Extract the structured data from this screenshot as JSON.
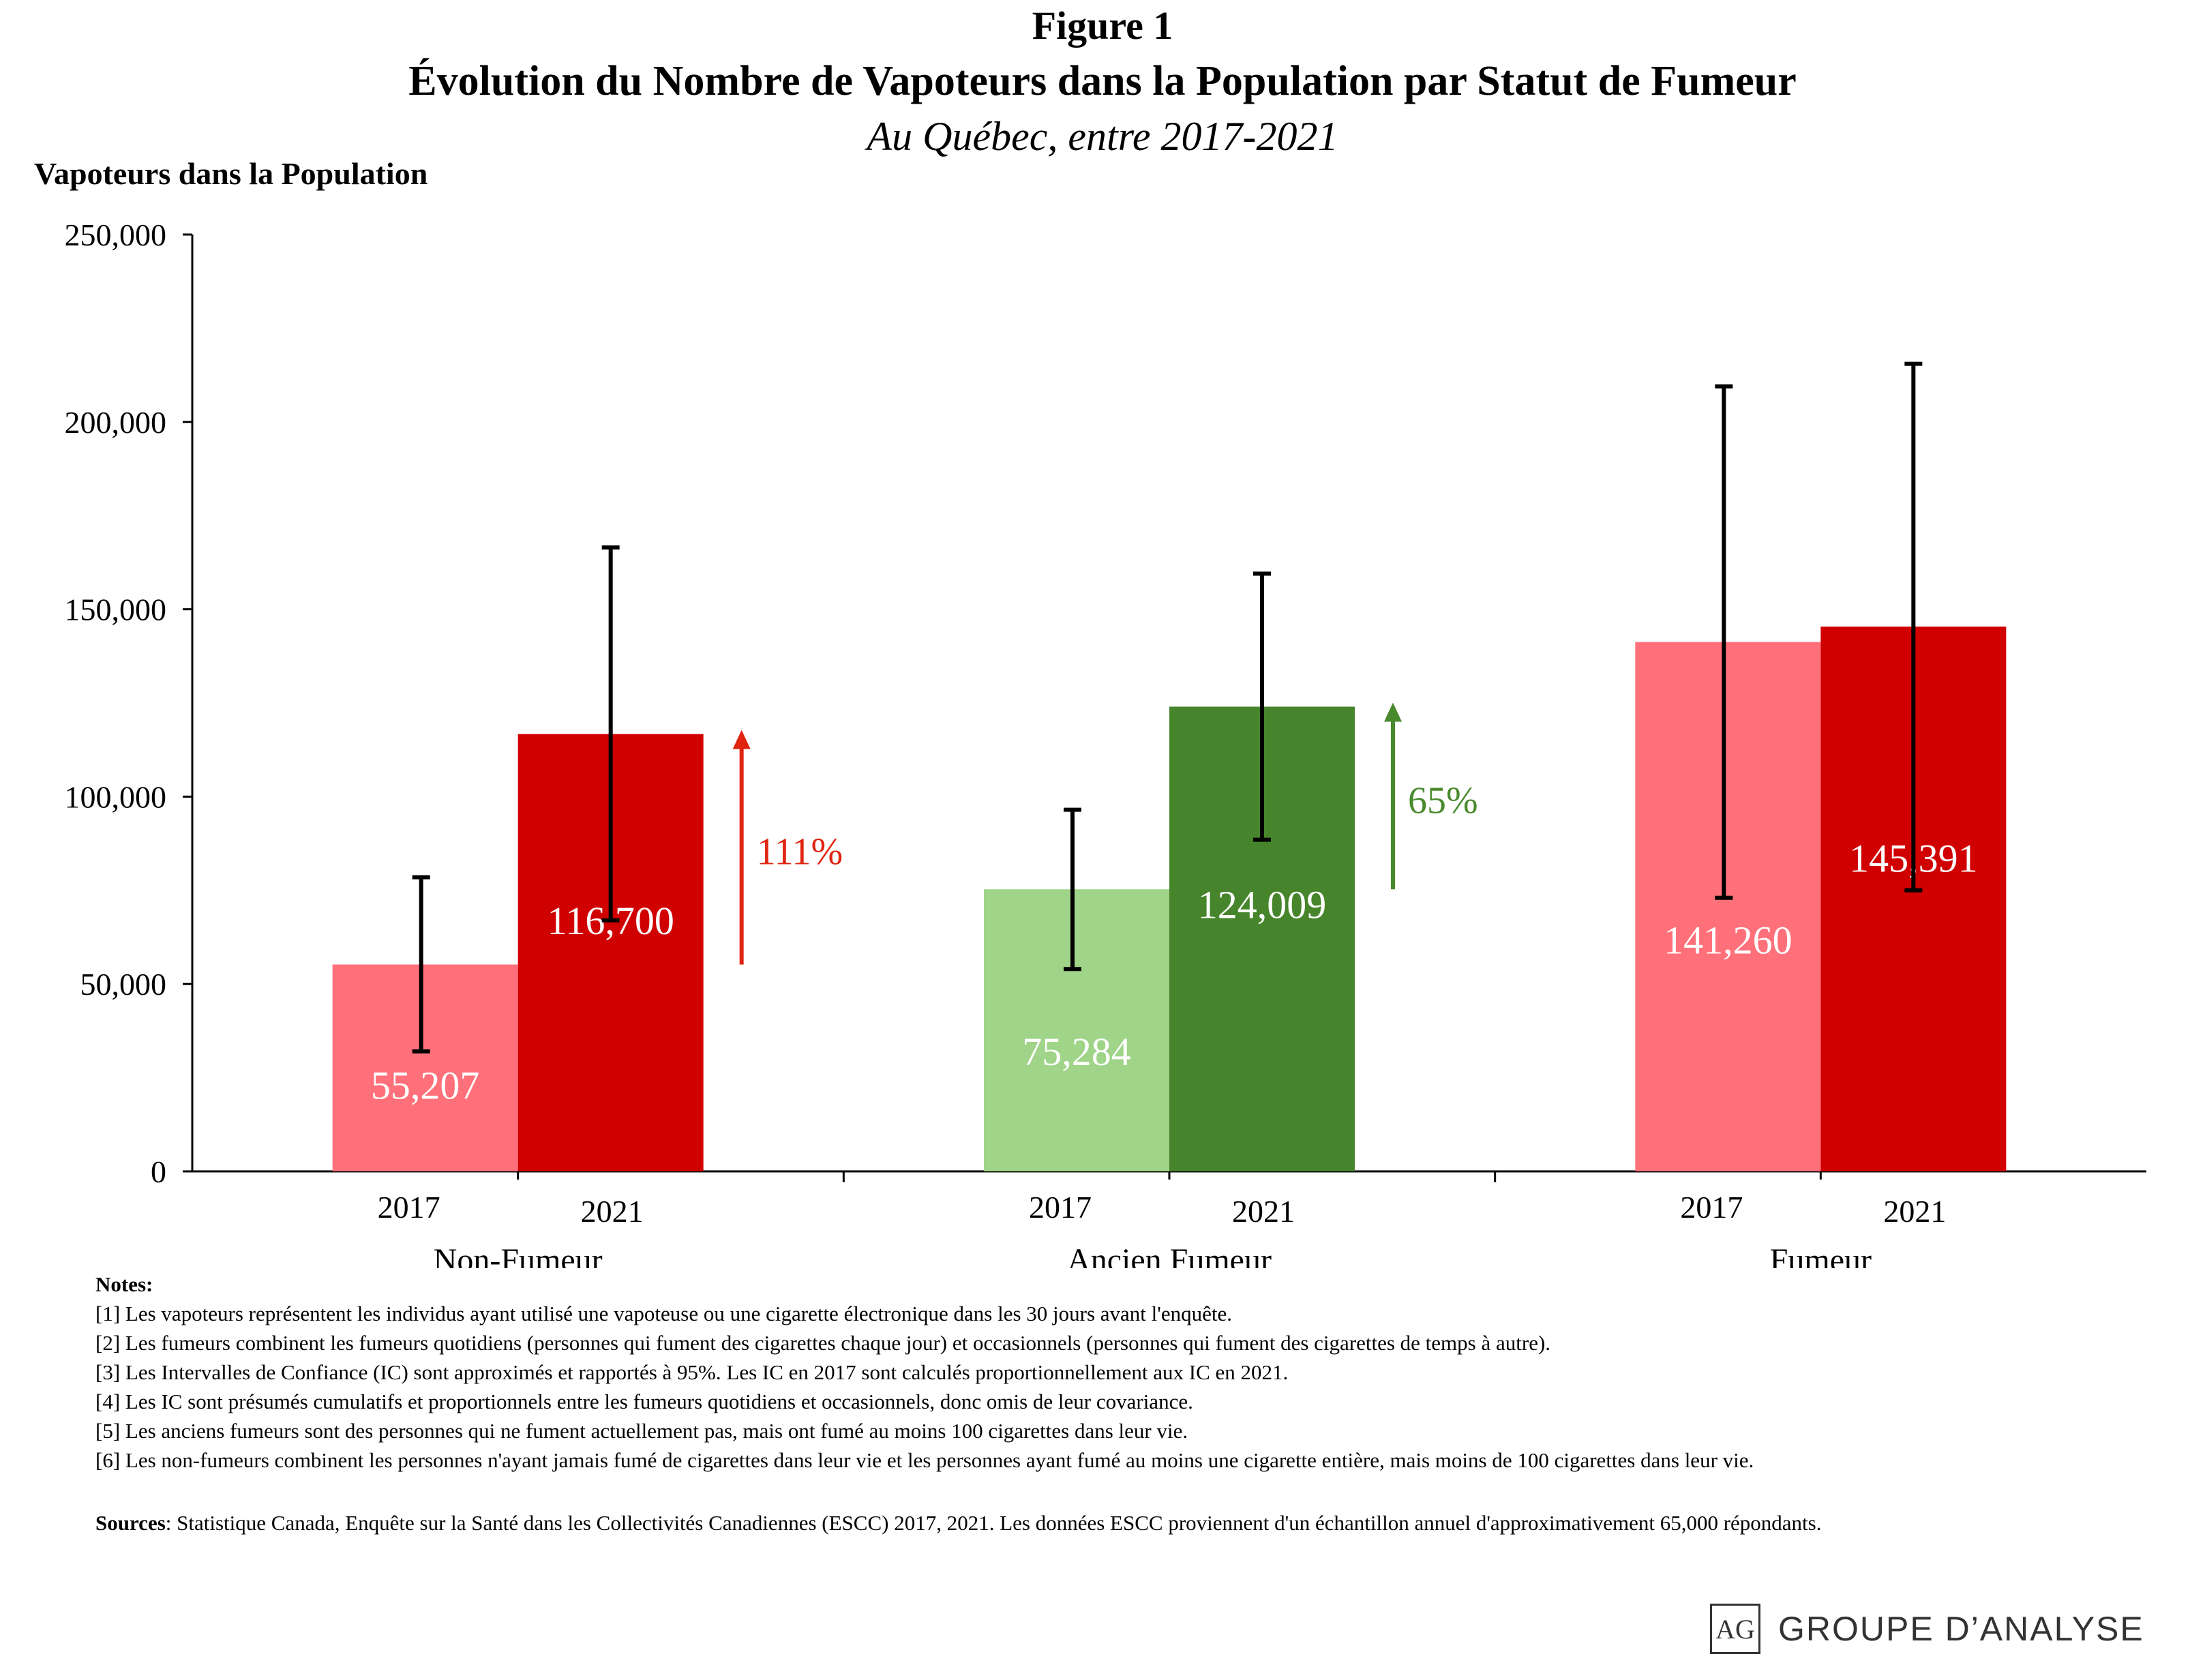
{
  "figure_label": "Figure 1",
  "chart_data": {
    "type": "bar",
    "title": "Évolution du Nombre de Vapoteurs dans la Population par Statut de Fumeur",
    "subtitle": "Au Québec, entre 2017-2021",
    "ylabel": "Vapoteurs dans la Population",
    "xlabel": "",
    "ylim": [
      0,
      250000
    ],
    "yticks": [
      0,
      50000,
      100000,
      150000,
      200000,
      250000
    ],
    "ytick_labels": [
      "0",
      "50,000",
      "100,000",
      "150,000",
      "200,000",
      "250,000"
    ],
    "grid": false,
    "legend": "none",
    "groups": [
      {
        "category": "Non-Fumeur",
        "bars": [
          {
            "year": "2017",
            "value": 55207,
            "label": "55,207",
            "ci": [
              32000,
              78500
            ],
            "color": "#ff707a"
          },
          {
            "year": "2021",
            "value": 116700,
            "label": "116,700",
            "ci": [
              67000,
              166500
            ],
            "color": "#d10000"
          }
        ],
        "change": {
          "label": "111%",
          "color": "#e0240f",
          "from": 55207,
          "to": 116700
        }
      },
      {
        "category": "Ancien Fumeur",
        "bars": [
          {
            "year": "2017",
            "value": 75284,
            "label": "75,284",
            "ci": [
              54000,
              96500
            ],
            "color": "#a0d488"
          },
          {
            "year": "2021",
            "value": 124009,
            "label": "124,009",
            "ci": [
              88500,
              159500
            ],
            "color": "#46852b"
          }
        ],
        "change": {
          "label": "65%",
          "color": "#4a8a2e",
          "from": 75284,
          "to": 124009
        }
      },
      {
        "category": "Fumeur",
        "bars": [
          {
            "year": "2017",
            "value": 141260,
            "label": "141,260",
            "ci": [
              73000,
              209500
            ],
            "color": "#ff707a"
          },
          {
            "year": "2021",
            "value": 145391,
            "label": "145,391",
            "ci": [
              75000,
              215500
            ],
            "color": "#d10000"
          }
        ]
      }
    ]
  },
  "notes": {
    "heading": "Notes",
    "items": [
      "[1] Les vapoteurs représentent les individus ayant utilisé une vapoteuse ou une cigarette électronique dans les 30 jours avant l'enquête.",
      "[2] Les fumeurs combinent les fumeurs quotidiens (personnes qui fument des cigarettes chaque jour) et occasionnels (personnes qui fument des cigarettes de temps à autre).",
      "[3] Les Intervalles de Confiance (IC) sont approximés et rapportés à 95%. Les IC en 2017 sont calculés proportionnellement aux IC en 2021.",
      "[4] Les IC sont présumés cumulatifs et proportionnels entre les fumeurs quotidiens et occasionnels, donc omis de leur covariance.",
      "[5] Les anciens fumeurs sont des personnes qui ne fument actuellement pas, mais ont fumé au moins 100 cigarettes dans leur vie.",
      "[6] Les non-fumeurs combinent les personnes n'ayant jamais fumé de cigarettes dans leur vie et les personnes ayant fumé au moins une cigarette entière, mais moins de 100 cigarettes dans leur vie."
    ]
  },
  "sources": {
    "heading": "Sources",
    "text": ": Statistique Canada, Enquête sur la Santé dans les Collectivités Canadiennes (ESCC) 2017, 2021. Les données ESCC proviennent d'un échantillon annuel d'approximativement 65,000 répondants."
  },
  "logo": {
    "mark": "AG",
    "text": "GROUPE D’ANALYSE"
  }
}
